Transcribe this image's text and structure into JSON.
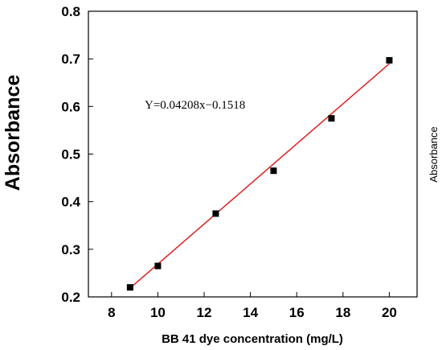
{
  "chart_data": {
    "type": "scatter",
    "title": "",
    "xlabel": "BB 41 dye concentration (mg/L)",
    "ylabel": "Absorbance",
    "side_label": "Absorbance",
    "xlim": [
      7,
      21.2
    ],
    "ylim": [
      0.2,
      0.8
    ],
    "x_ticks": [
      8,
      10,
      12,
      14,
      16,
      18,
      20
    ],
    "y_ticks": [
      "0.2",
      "0.3",
      "0.4",
      "0.5",
      "0.6",
      "0.7",
      "0.8"
    ],
    "grid": false,
    "series": [
      {
        "points": [
          {
            "x": 8.8,
            "y": 0.22
          },
          {
            "x": 10.0,
            "y": 0.265
          },
          {
            "x": 12.5,
            "y": 0.375
          },
          {
            "x": 15.0,
            "y": 0.465
          },
          {
            "x": 17.5,
            "y": 0.575
          },
          {
            "x": 20.0,
            "y": 0.697
          }
        ],
        "marker_color": "#000000"
      }
    ],
    "fit_line": {
      "equation": "Y=0.04208x−0.1518",
      "slope": 0.04208,
      "intercept": -0.1518,
      "x_range": [
        8.8,
        20.0
      ],
      "color": "#e02020"
    }
  }
}
